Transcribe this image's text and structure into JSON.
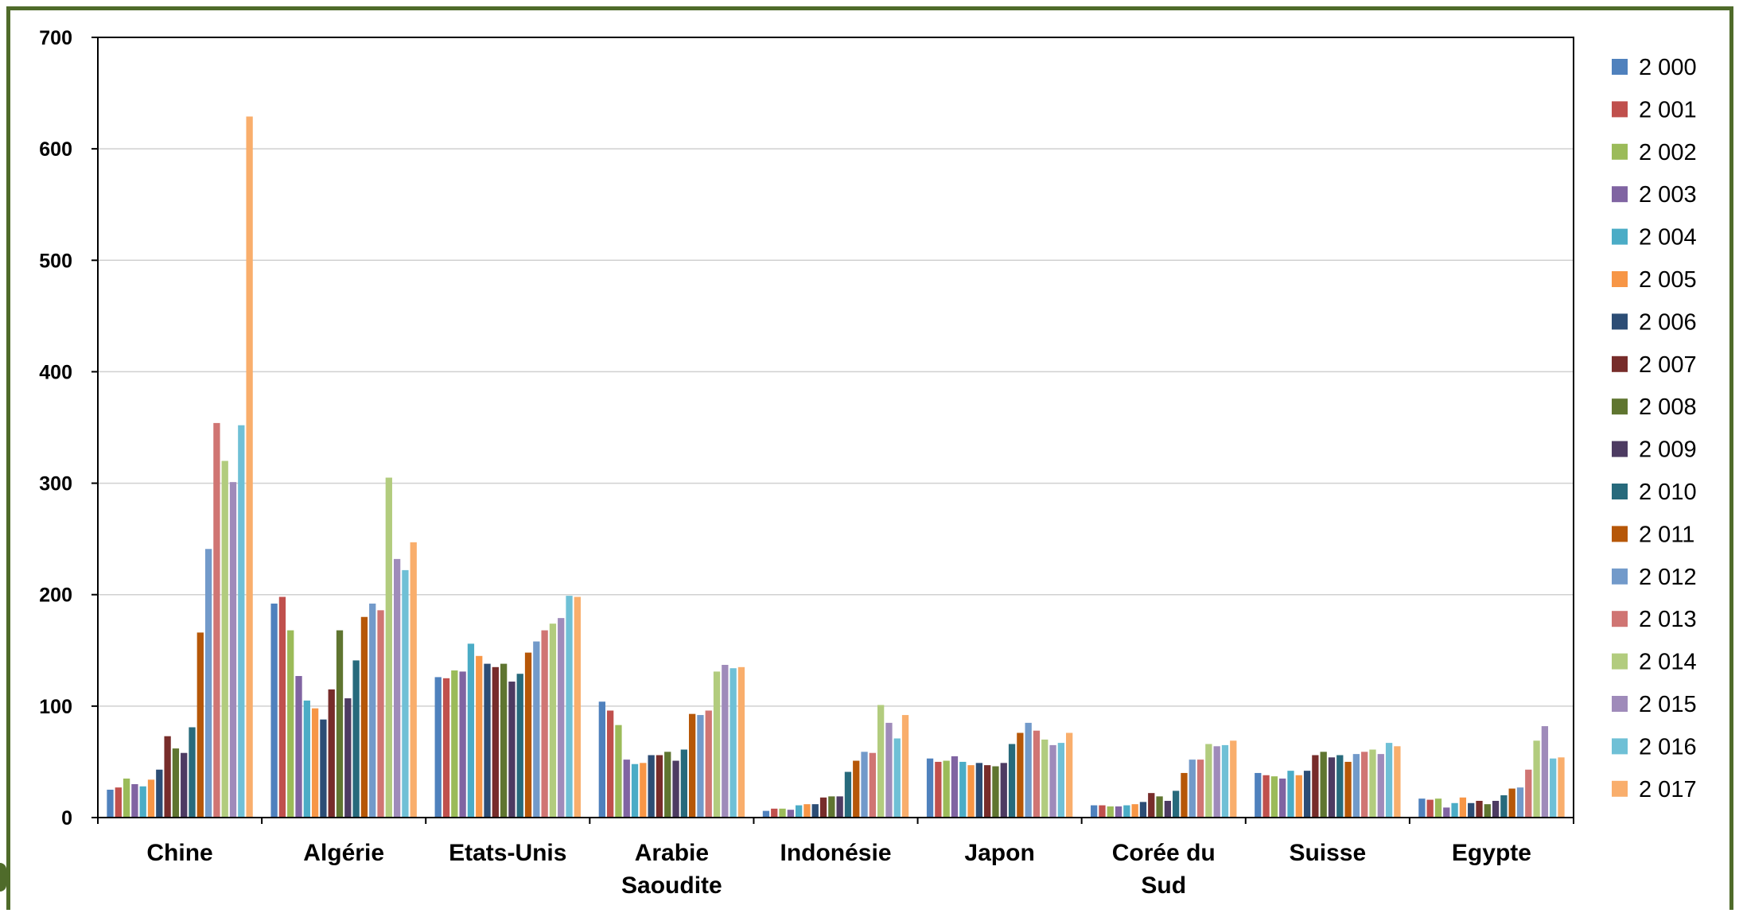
{
  "chart_data": {
    "type": "bar",
    "title": "",
    "xlabel": "",
    "ylabel": "",
    "ylim": [
      0,
      700
    ],
    "yticks": [
      0,
      100,
      200,
      300,
      400,
      500,
      600,
      700
    ],
    "grid": true,
    "legend_position": "right",
    "categories": [
      [
        "Chine"
      ],
      [
        "Algérie"
      ],
      [
        "Etats-Unis"
      ],
      [
        "Arabie",
        "Saoudite"
      ],
      [
        "Indonésie"
      ],
      [
        "Japon"
      ],
      [
        "Corée du",
        "Sud"
      ],
      [
        "Suisse"
      ],
      [
        "Egypte"
      ]
    ],
    "series": [
      {
        "name": "2 000",
        "color": "#4f81bd",
        "values": [
          25,
          192,
          126,
          104,
          6,
          53,
          11,
          40,
          17
        ]
      },
      {
        "name": "2 001",
        "color": "#c0504d",
        "values": [
          27,
          198,
          125,
          96,
          8,
          50,
          11,
          38,
          16
        ]
      },
      {
        "name": "2 002",
        "color": "#9bbb59",
        "values": [
          35,
          168,
          132,
          83,
          8,
          51,
          10,
          37,
          17
        ]
      },
      {
        "name": "2 003",
        "color": "#8064a2",
        "values": [
          30,
          127,
          131,
          52,
          7,
          55,
          10,
          35,
          9
        ]
      },
      {
        "name": "2 004",
        "color": "#4bacc6",
        "values": [
          28,
          105,
          156,
          48,
          11,
          50,
          11,
          42,
          13
        ]
      },
      {
        "name": "2 005",
        "color": "#f79646",
        "values": [
          34,
          98,
          145,
          49,
          12,
          47,
          12,
          38,
          18
        ]
      },
      {
        "name": "2 006",
        "color": "#2c4d75",
        "values": [
          43,
          88,
          138,
          56,
          12,
          49,
          14,
          42,
          13
        ]
      },
      {
        "name": "2 007",
        "color": "#772c2a",
        "values": [
          73,
          115,
          135,
          56,
          18,
          47,
          22,
          56,
          15
        ]
      },
      {
        "name": "2 008",
        "color": "#5f7530",
        "values": [
          62,
          168,
          138,
          59,
          19,
          46,
          19,
          59,
          12
        ]
      },
      {
        "name": "2 009",
        "color": "#4d3b62",
        "values": [
          58,
          107,
          122,
          51,
          19,
          49,
          15,
          54,
          15
        ]
      },
      {
        "name": "2 010",
        "color": "#276a7c",
        "values": [
          81,
          141,
          129,
          61,
          41,
          66,
          24,
          56,
          20
        ]
      },
      {
        "name": "2 011",
        "color": "#b65708",
        "values": [
          166,
          180,
          148,
          93,
          51,
          76,
          40,
          50,
          26
        ]
      },
      {
        "name": "2 012",
        "color": "#729aca",
        "values": [
          241,
          192,
          158,
          92,
          59,
          85,
          52,
          57,
          27
        ]
      },
      {
        "name": "2 013",
        "color": "#d07573",
        "values": [
          354,
          186,
          168,
          96,
          58,
          78,
          52,
          59,
          43
        ]
      },
      {
        "name": "2 014",
        "color": "#b2cc7e",
        "values": [
          320,
          305,
          174,
          131,
          101,
          70,
          66,
          61,
          69
        ]
      },
      {
        "name": "2 015",
        "color": "#9f8bba",
        "values": [
          301,
          232,
          179,
          137,
          85,
          65,
          64,
          57,
          82
        ]
      },
      {
        "name": "2 016",
        "color": "#6fc0d6",
        "values": [
          352,
          222,
          199,
          134,
          71,
          67,
          65,
          67,
          53
        ]
      },
      {
        "name": "2 017",
        "color": "#f9ae6c",
        "values": [
          629,
          247,
          198,
          135,
          92,
          76,
          69,
          64,
          54
        ]
      }
    ]
  }
}
